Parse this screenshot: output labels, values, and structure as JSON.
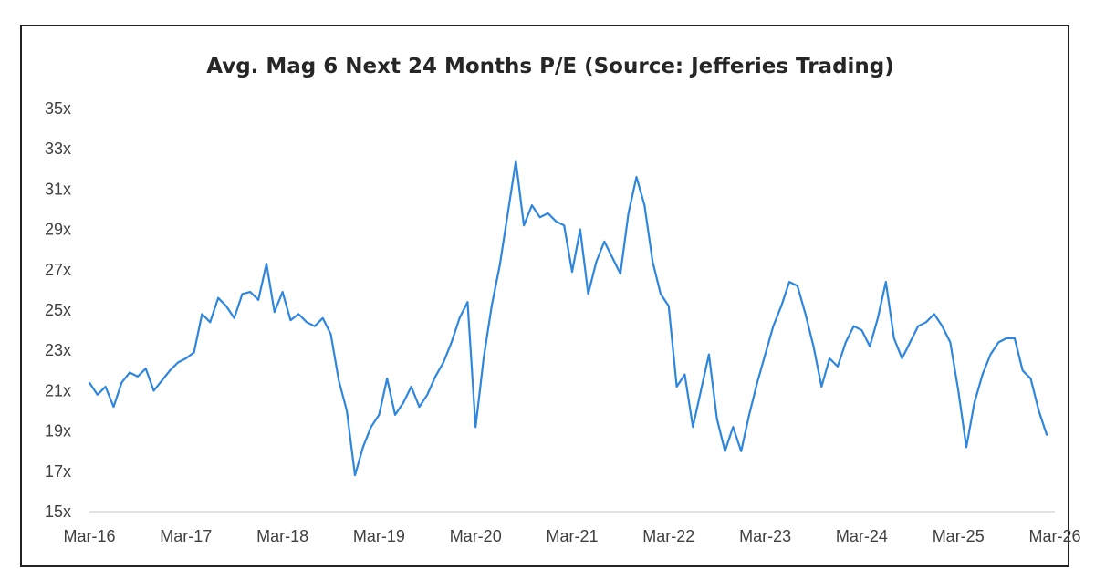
{
  "chart_data": {
    "type": "line",
    "title": "Avg. Mag 6 Next 24 Months P/E (Source: Jefferies Trading)",
    "xlabel": "",
    "ylabel": "",
    "x_tick_labels": [
      "Mar-16",
      "Mar-17",
      "Mar-18",
      "Mar-19",
      "Mar-20",
      "Mar-21",
      "Mar-22",
      "Mar-23",
      "Mar-24",
      "Mar-25",
      "Mar-26"
    ],
    "y_tick_labels": [
      "15x",
      "17x",
      "19x",
      "21x",
      "23x",
      "25x",
      "27x",
      "29x",
      "31x",
      "33x",
      "35x"
    ],
    "xlim": [
      "2016-03",
      "2026-03"
    ],
    "ylim": [
      15,
      35
    ],
    "grid": false,
    "legend": "none",
    "series": [
      {
        "color": "#2e86de",
        "points": [
          [
            "2016-03",
            21.4
          ],
          [
            "2016-04",
            20.8
          ],
          [
            "2016-05",
            21.2
          ],
          [
            "2016-06",
            20.2
          ],
          [
            "2016-07",
            21.4
          ],
          [
            "2016-08",
            21.9
          ],
          [
            "2016-09",
            21.7
          ],
          [
            "2016-10",
            22.1
          ],
          [
            "2016-11",
            21.0
          ],
          [
            "2016-12",
            21.5
          ],
          [
            "2017-01",
            22.0
          ],
          [
            "2017-02",
            22.4
          ],
          [
            "2017-03",
            22.6
          ],
          [
            "2017-04",
            22.9
          ],
          [
            "2017-05",
            24.8
          ],
          [
            "2017-06",
            24.4
          ],
          [
            "2017-07",
            25.6
          ],
          [
            "2017-08",
            25.2
          ],
          [
            "2017-09",
            24.6
          ],
          [
            "2017-10",
            25.8
          ],
          [
            "2017-11",
            25.9
          ],
          [
            "2017-12",
            25.5
          ],
          [
            "2018-01",
            27.3
          ],
          [
            "2018-02",
            24.9
          ],
          [
            "2018-03",
            25.9
          ],
          [
            "2018-04",
            24.5
          ],
          [
            "2018-05",
            24.8
          ],
          [
            "2018-06",
            24.4
          ],
          [
            "2018-07",
            24.2
          ],
          [
            "2018-08",
            24.6
          ],
          [
            "2018-09",
            23.8
          ],
          [
            "2018-10",
            21.5
          ],
          [
            "2018-11",
            20.0
          ],
          [
            "2018-12",
            16.8
          ],
          [
            "2019-01",
            18.2
          ],
          [
            "2019-02",
            19.2
          ],
          [
            "2019-03",
            19.8
          ],
          [
            "2019-04",
            21.6
          ],
          [
            "2019-05",
            19.8
          ],
          [
            "2019-06",
            20.4
          ],
          [
            "2019-07",
            21.2
          ],
          [
            "2019-08",
            20.2
          ],
          [
            "2019-09",
            20.8
          ],
          [
            "2019-10",
            21.7
          ],
          [
            "2019-11",
            22.4
          ],
          [
            "2019-12",
            23.4
          ],
          [
            "2020-01",
            24.6
          ],
          [
            "2020-02",
            25.4
          ],
          [
            "2020-03",
            19.2
          ],
          [
            "2020-04",
            22.6
          ],
          [
            "2020-05",
            25.2
          ],
          [
            "2020-06",
            27.2
          ],
          [
            "2020-07",
            29.8
          ],
          [
            "2020-08",
            32.4
          ],
          [
            "2020-09",
            29.2
          ],
          [
            "2020-10",
            30.2
          ],
          [
            "2020-11",
            29.6
          ],
          [
            "2020-12",
            29.8
          ],
          [
            "2021-01",
            29.4
          ],
          [
            "2021-02",
            29.2
          ],
          [
            "2021-03",
            26.9
          ],
          [
            "2021-04",
            29.0
          ],
          [
            "2021-05",
            25.8
          ],
          [
            "2021-06",
            27.4
          ],
          [
            "2021-07",
            28.4
          ],
          [
            "2021-08",
            27.6
          ],
          [
            "2021-09",
            26.8
          ],
          [
            "2021-10",
            29.8
          ],
          [
            "2021-11",
            31.6
          ],
          [
            "2021-12",
            30.2
          ],
          [
            "2022-01",
            27.4
          ],
          [
            "2022-02",
            25.8
          ],
          [
            "2022-03",
            25.2
          ],
          [
            "2022-04",
            21.2
          ],
          [
            "2022-05",
            21.8
          ],
          [
            "2022-06",
            19.2
          ],
          [
            "2022-07",
            21.0
          ],
          [
            "2022-08",
            22.8
          ],
          [
            "2022-09",
            19.6
          ],
          [
            "2022-10",
            18.0
          ],
          [
            "2022-11",
            19.2
          ],
          [
            "2022-12",
            18.0
          ],
          [
            "2023-01",
            19.8
          ],
          [
            "2023-02",
            21.4
          ],
          [
            "2023-03",
            22.8
          ],
          [
            "2023-04",
            24.2
          ],
          [
            "2023-05",
            25.2
          ],
          [
            "2023-06",
            26.4
          ],
          [
            "2023-07",
            26.2
          ],
          [
            "2023-08",
            24.8
          ],
          [
            "2023-09",
            23.2
          ],
          [
            "2023-10",
            21.2
          ],
          [
            "2023-11",
            22.6
          ],
          [
            "2023-12",
            22.2
          ],
          [
            "2024-01",
            23.4
          ],
          [
            "2024-02",
            24.2
          ],
          [
            "2024-03",
            24.0
          ],
          [
            "2024-04",
            23.2
          ],
          [
            "2024-05",
            24.6
          ],
          [
            "2024-06",
            26.4
          ],
          [
            "2024-07",
            23.6
          ],
          [
            "2024-08",
            22.6
          ],
          [
            "2024-09",
            23.4
          ],
          [
            "2024-10",
            24.2
          ],
          [
            "2024-11",
            24.4
          ],
          [
            "2024-12",
            24.8
          ],
          [
            "2025-01",
            24.2
          ],
          [
            "2025-02",
            23.4
          ],
          [
            "2025-03",
            21.0
          ],
          [
            "2025-04",
            18.2
          ],
          [
            "2025-05",
            20.4
          ],
          [
            "2025-06",
            21.8
          ],
          [
            "2025-07",
            22.8
          ],
          [
            "2025-08",
            23.4
          ],
          [
            "2025-09",
            23.6
          ],
          [
            "2025-10",
            23.6
          ],
          [
            "2025-11",
            22.0
          ],
          [
            "2025-12",
            21.6
          ],
          [
            "2026-01",
            20.0
          ],
          [
            "2026-02",
            18.8
          ]
        ]
      }
    ]
  }
}
